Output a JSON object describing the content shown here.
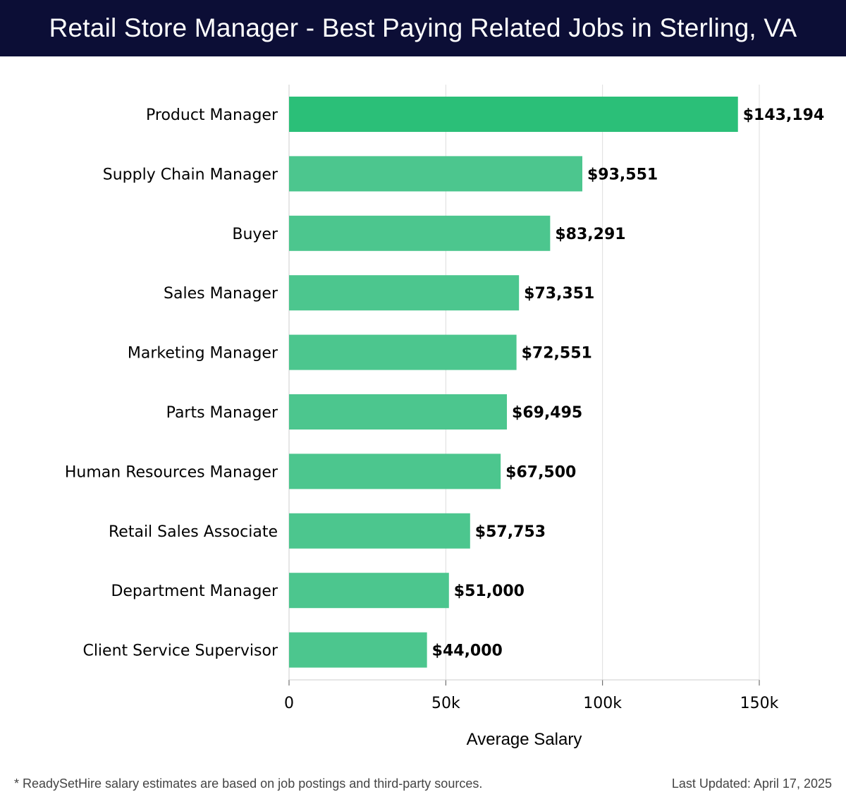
{
  "header": {
    "title": "Retail Store Manager - Best Paying Related Jobs in Sterling, VA"
  },
  "colors": {
    "header_background": "#0c0e36",
    "top_bar": "#2bbf78",
    "bar": "#4cc68e",
    "gridline": "#dddddd",
    "text": "#000000"
  },
  "chart_data": {
    "type": "bar",
    "orientation": "horizontal",
    "categories": [
      "Product Manager",
      "Supply Chain Manager",
      "Buyer",
      "Sales Manager",
      "Marketing Manager",
      "Parts Manager",
      "Human Resources Manager",
      "Retail Sales Associate",
      "Department Manager",
      "Client Service Supervisor"
    ],
    "values": [
      143194,
      93551,
      83291,
      73351,
      72551,
      69495,
      67500,
      57753,
      51000,
      44000
    ],
    "data_labels": [
      "$143,194",
      "$93,551",
      "$83,291",
      "$73,351",
      "$72,551",
      "$69,495",
      "$67,500",
      "$57,753",
      "$51,000",
      "$44,000"
    ],
    "xlabel": "Average Salary",
    "ylabel": "",
    "xlim": [
      0,
      150000
    ],
    "xticks": [
      0,
      50000,
      100000,
      150000
    ],
    "xtick_labels": [
      "0",
      "50k",
      "100k",
      "150k"
    ],
    "grid": true
  },
  "footer": {
    "note": "* ReadySetHire salary estimates are based on job postings and third-party sources.",
    "updated": "Last Updated: April 17, 2025"
  }
}
